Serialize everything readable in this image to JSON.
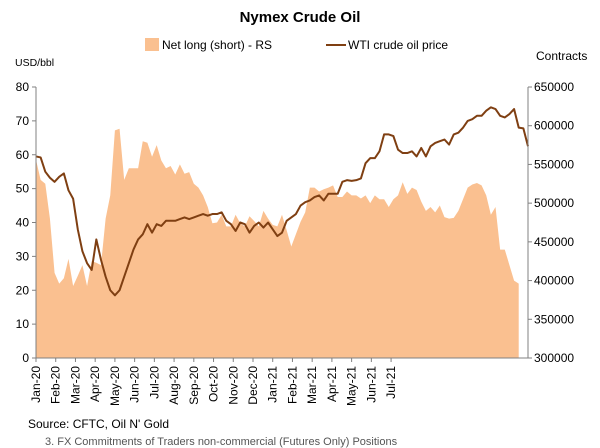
{
  "chart_data": {
    "type": "line+area",
    "title": "Nymex Crude Oil",
    "left_axis": {
      "label": "USD/bbl",
      "min": 0,
      "max": 80,
      "step": 10,
      "ticks": [
        "0",
        "10",
        "20",
        "30",
        "40",
        "50",
        "60",
        "70",
        "80"
      ]
    },
    "right_axis": {
      "label": "Contracts",
      "min": 300000,
      "max": 650000,
      "step": 50000,
      "ticks": [
        "300000",
        "350000",
        "400000",
        "450000",
        "500000",
        "550000",
        "600000",
        "650000"
      ]
    },
    "x_labels": [
      "Jan-20",
      "Feb-20",
      "Mar-20",
      "Apr-20",
      "May-20",
      "Jun-20",
      "Jul-20",
      "Aug-20",
      "Sep-20",
      "Oct-20",
      "Nov-20",
      "Dec-20",
      "Jan-21",
      "Feb-21",
      "Mar-21",
      "Apr-21",
      "May-21",
      "Jun-21",
      "Jul-21"
    ],
    "weeks_per_label": 4.25,
    "grid": false,
    "legend_position": "top",
    "series": [
      {
        "name": "Net long (short) - RS",
        "kind": "area",
        "axis": "right",
        "color": "#FAC090",
        "values": [
          556000,
          530000,
          525000,
          480000,
          410000,
          396000,
          403000,
          428000,
          393000,
          406000,
          420000,
          393000,
          425000,
          423000,
          420000,
          480000,
          510000,
          594000,
          596000,
          530000,
          545000,
          545000,
          545000,
          580000,
          578000,
          560000,
          575000,
          555000,
          545000,
          548000,
          537000,
          550000,
          538000,
          540000,
          525000,
          520000,
          510000,
          495000,
          474000,
          475000,
          485000,
          470000,
          470000,
          485000,
          474000,
          470000,
          483000,
          477000,
          470000,
          490000,
          480000,
          472000,
          470000,
          485000,
          465000,
          444000,
          460000,
          476000,
          488000,
          520000,
          520000,
          515000,
          518000,
          520000,
          523000,
          508000,
          508000,
          515000,
          510000,
          510000,
          506000,
          510000,
          500000,
          510000,
          505000,
          505000,
          495000,
          505000,
          510000,
          527000,
          512000,
          520000,
          517000,
          502000,
          490000,
          495000,
          488000,
          497000,
          482000,
          480000,
          481000,
          490000,
          505000,
          520000,
          524000,
          526000,
          523000,
          510000,
          485000,
          495000,
          440000,
          440000,
          420000,
          400000,
          396000
        ]
      },
      {
        "name": "WTI crude oil price",
        "kind": "line",
        "axis": "left",
        "color": "#7F3F12",
        "values": [
          59.5,
          59.2,
          55.0,
          53.2,
          52.0,
          53.5,
          54.5,
          49.5,
          47.0,
          38.0,
          31.5,
          28.0,
          26.0,
          35.0,
          29.0,
          24.0,
          20.0,
          18.5,
          20.0,
          24.0,
          28.0,
          32.0,
          35.0,
          36.5,
          39.5,
          37.0,
          39.5,
          39.0,
          40.5,
          40.5,
          40.5,
          41.0,
          41.5,
          41.0,
          41.5,
          42.0,
          42.5,
          42.0,
          42.5,
          42.5,
          43.0,
          40.5,
          39.5,
          37.5,
          40.0,
          39.5,
          37.0,
          39.0,
          40.0,
          38.5,
          40.0,
          38.0,
          36.0,
          37.0,
          40.5,
          41.5,
          42.5,
          45.0,
          46.0,
          46.5,
          47.5,
          48.0,
          46.5,
          48.5,
          48.5,
          48.5,
          52.0,
          52.5,
          52.3,
          52.5,
          53.0,
          57.5,
          59.0,
          59.0,
          61.0,
          66.0,
          66.0,
          65.5,
          61.5,
          60.5,
          60.5,
          61.0,
          59.5,
          62.0,
          59.5,
          62.5,
          63.5,
          64.0,
          64.5,
          63.0,
          66.0,
          66.5,
          68.0,
          70.0,
          70.5,
          71.5,
          71.5,
          73.0,
          74.0,
          73.5,
          71.5,
          71.0,
          72.0,
          73.5,
          68.0,
          67.8,
          62.5
        ]
      }
    ],
    "source": "Source: CFTC, Oil N' Gold",
    "footnote": "3. FX Commitments of Traders non-commercial (Futures Only) Positions"
  }
}
